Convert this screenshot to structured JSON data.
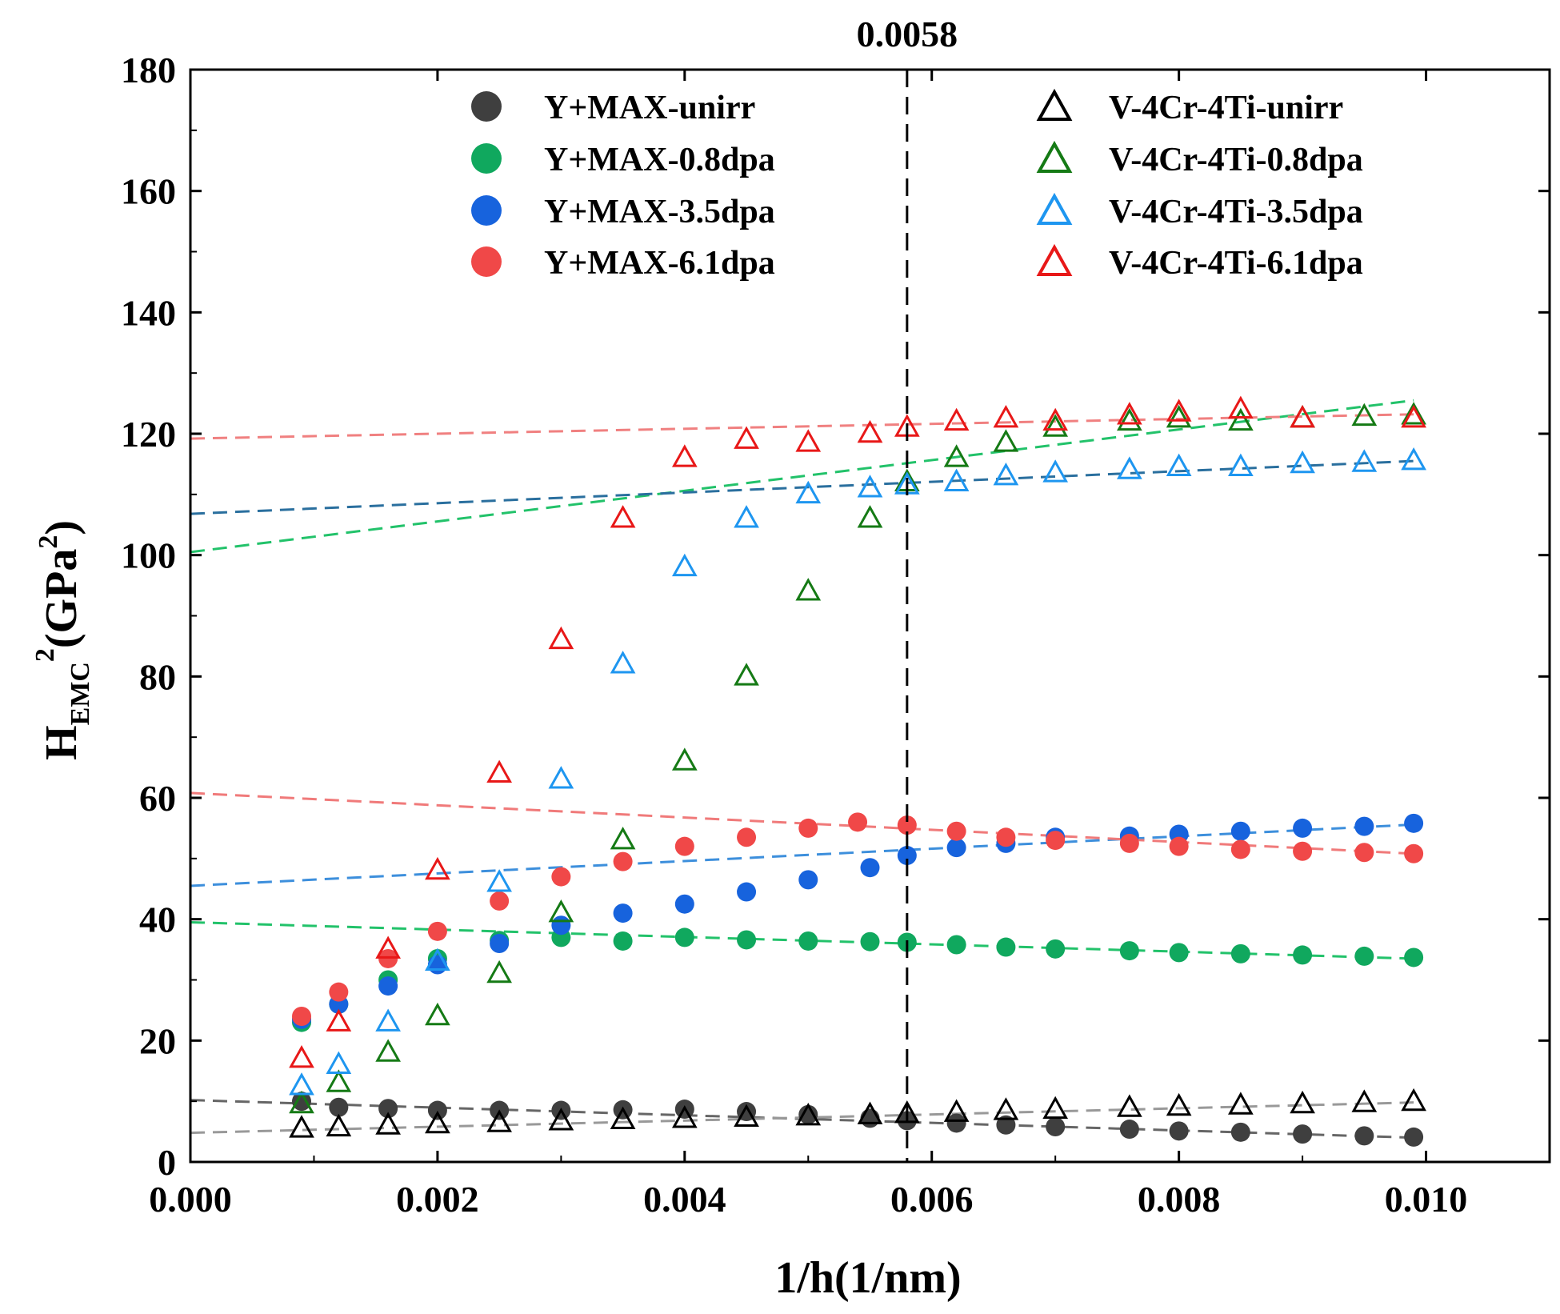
{
  "chart_data": {
    "type": "scatter",
    "title": "",
    "xlabel": "1/h(1/nm)",
    "ylabel": {
      "main": "H",
      "subscript": "EMC",
      "sup1": "2",
      "paren_open": "(GPa",
      "sup2": "2",
      "paren_close": ")"
    },
    "xlim": [
      0.0,
      0.011
    ],
    "ylim": [
      0,
      180
    ],
    "xticks": [
      0.0,
      0.002,
      0.004,
      0.006,
      0.008,
      0.01
    ],
    "xtick_labels": [
      "0.000",
      "0.002",
      "0.004",
      "0.006",
      "0.008",
      "0.010"
    ],
    "yticks": [
      0,
      20,
      40,
      60,
      80,
      100,
      120,
      140,
      160,
      180
    ],
    "ytick_labels": [
      "0",
      "20",
      "40",
      "60",
      "80",
      "100",
      "120",
      "140",
      "160",
      "180"
    ],
    "vline": {
      "x": 0.0058,
      "label": "0.0058"
    },
    "legend_left": [
      "Y+MAX-unirr",
      "Y+MAX-0.8dpa",
      "Y+MAX-3.5dpa",
      "Y+MAX-6.1dpa"
    ],
    "legend_right": [
      "V-4Cr-4Ti-unirr",
      "V-4Cr-4Ti-0.8dpa",
      "V-4Cr-4Ti-3.5dpa",
      "V-4Cr-4Ti-6.1dpa"
    ],
    "series": [
      {
        "name": "Y+MAX-unirr",
        "marker": "circle",
        "color": "#3f3f3f",
        "points": [
          [
            0.0009,
            10
          ],
          [
            0.0012,
            9
          ],
          [
            0.0016,
            8.8
          ],
          [
            0.002,
            8.5
          ],
          [
            0.0025,
            8.5
          ],
          [
            0.003,
            8.5
          ],
          [
            0.0035,
            8.6
          ],
          [
            0.004,
            8.7
          ],
          [
            0.0045,
            8.3
          ],
          [
            0.005,
            7.8
          ],
          [
            0.0055,
            7.2
          ],
          [
            0.0058,
            6.8
          ],
          [
            0.0062,
            6.4
          ],
          [
            0.0066,
            6.1
          ],
          [
            0.007,
            5.8
          ],
          [
            0.0076,
            5.4
          ],
          [
            0.008,
            5.1
          ],
          [
            0.0085,
            4.9
          ],
          [
            0.009,
            4.6
          ],
          [
            0.0095,
            4.3
          ],
          [
            0.0099,
            4.1
          ]
        ],
        "fit": {
          "x1": 0.0,
          "y1": 10.2,
          "x2": 0.0099,
          "y2": 4.0,
          "color": "#666666"
        }
      },
      {
        "name": "Y+MAX-0.8dpa",
        "marker": "circle",
        "color": "#10a85e",
        "points": [
          [
            0.0009,
            23
          ],
          [
            0.0012,
            26
          ],
          [
            0.0016,
            30
          ],
          [
            0.002,
            33.5
          ],
          [
            0.0025,
            36.5
          ],
          [
            0.003,
            37
          ],
          [
            0.0035,
            36.4
          ],
          [
            0.004,
            37
          ],
          [
            0.0045,
            36.6
          ],
          [
            0.005,
            36.4
          ],
          [
            0.0055,
            36.3
          ],
          [
            0.0058,
            36.2
          ],
          [
            0.0062,
            35.8
          ],
          [
            0.0066,
            35.4
          ],
          [
            0.007,
            35.1
          ],
          [
            0.0076,
            34.8
          ],
          [
            0.008,
            34.5
          ],
          [
            0.0085,
            34.3
          ],
          [
            0.009,
            34.1
          ],
          [
            0.0095,
            33.9
          ],
          [
            0.0099,
            33.7
          ]
        ],
        "fit": {
          "x1": 0.0,
          "y1": 39.5,
          "x2": 0.0099,
          "y2": 33.5,
          "color": "#22c26a"
        }
      },
      {
        "name": "Y+MAX-3.5dpa",
        "marker": "circle",
        "color": "#1763dd",
        "points": [
          [
            0.0009,
            23.5
          ],
          [
            0.0012,
            26
          ],
          [
            0.0016,
            29
          ],
          [
            0.002,
            32.5
          ],
          [
            0.0025,
            36
          ],
          [
            0.003,
            39
          ],
          [
            0.0035,
            41
          ],
          [
            0.004,
            42.5
          ],
          [
            0.0045,
            44.5
          ],
          [
            0.005,
            46.5
          ],
          [
            0.0055,
            48.5
          ],
          [
            0.0058,
            50.5
          ],
          [
            0.0062,
            51.8
          ],
          [
            0.0066,
            52.5
          ],
          [
            0.007,
            53.5
          ],
          [
            0.0076,
            53.7
          ],
          [
            0.008,
            54
          ],
          [
            0.0085,
            54.5
          ],
          [
            0.009,
            55
          ],
          [
            0.0095,
            55.3
          ],
          [
            0.0099,
            55.8
          ]
        ],
        "fit": {
          "x1": 0.0,
          "y1": 45.5,
          "x2": 0.0099,
          "y2": 55.6,
          "color": "#3d8fdc"
        }
      },
      {
        "name": "Y+MAX-6.1dpa",
        "marker": "circle",
        "color": "#f04848",
        "points": [
          [
            0.0009,
            24
          ],
          [
            0.0012,
            28
          ],
          [
            0.0016,
            33.5
          ],
          [
            0.002,
            38
          ],
          [
            0.0025,
            43
          ],
          [
            0.003,
            47
          ],
          [
            0.0035,
            49.5
          ],
          [
            0.004,
            52
          ],
          [
            0.0045,
            53.5
          ],
          [
            0.005,
            55
          ],
          [
            0.0054,
            56
          ],
          [
            0.0058,
            55.5
          ],
          [
            0.0062,
            54.5
          ],
          [
            0.0066,
            53.5
          ],
          [
            0.007,
            53
          ],
          [
            0.0076,
            52.5
          ],
          [
            0.008,
            52
          ],
          [
            0.0085,
            51.5
          ],
          [
            0.009,
            51.2
          ],
          [
            0.0095,
            51
          ],
          [
            0.0099,
            50.8
          ]
        ],
        "fit": {
          "x1": 0.0,
          "y1": 60.8,
          "x2": 0.0099,
          "y2": 50.8,
          "color": "#f07a7a"
        }
      },
      {
        "name": "V-4Cr-4Ti-unirr",
        "marker": "triangle",
        "color": "#000000",
        "points": [
          [
            0.0009,
            5.5
          ],
          [
            0.0012,
            5.7
          ],
          [
            0.0016,
            6
          ],
          [
            0.002,
            6.2
          ],
          [
            0.0025,
            6.4
          ],
          [
            0.003,
            6.7
          ],
          [
            0.0035,
            6.9
          ],
          [
            0.004,
            7.1
          ],
          [
            0.0045,
            7.3
          ],
          [
            0.005,
            7.5
          ],
          [
            0.0055,
            7.7
          ],
          [
            0.0058,
            7.9
          ],
          [
            0.0062,
            8.1
          ],
          [
            0.0066,
            8.4
          ],
          [
            0.007,
            8.6
          ],
          [
            0.0076,
            8.9
          ],
          [
            0.008,
            9.1
          ],
          [
            0.0085,
            9.3
          ],
          [
            0.009,
            9.5
          ],
          [
            0.0095,
            9.7
          ],
          [
            0.0099,
            9.9
          ]
        ],
        "fit": {
          "x1": 0.0,
          "y1": 4.8,
          "x2": 0.0099,
          "y2": 9.8,
          "color": "#999999"
        }
      },
      {
        "name": "V-4Cr-4Ti-0.8dpa",
        "marker": "triangle",
        "color": "#157a15",
        "points": [
          [
            0.0009,
            9.5
          ],
          [
            0.0012,
            13
          ],
          [
            0.0016,
            18
          ],
          [
            0.002,
            24
          ],
          [
            0.0025,
            31
          ],
          [
            0.003,
            41
          ],
          [
            0.0035,
            53
          ],
          [
            0.004,
            66
          ],
          [
            0.0045,
            80
          ],
          [
            0.005,
            94
          ],
          [
            0.0055,
            106
          ],
          [
            0.0058,
            112
          ],
          [
            0.0062,
            116
          ],
          [
            0.0066,
            118.5
          ],
          [
            0.007,
            121
          ],
          [
            0.0076,
            122
          ],
          [
            0.008,
            122.5
          ],
          [
            0.0085,
            122
          ],
          [
            0.009,
            122.5
          ],
          [
            0.0095,
            122.8
          ],
          [
            0.0099,
            123
          ]
        ],
        "fit": {
          "x1": 0.0,
          "y1": 100.5,
          "x2": 0.0099,
          "y2": 125.5,
          "color": "#22c26a"
        }
      },
      {
        "name": "V-4Cr-4Ti-3.5dpa",
        "marker": "triangle",
        "color": "#1e96f0",
        "points": [
          [
            0.0009,
            12.5
          ],
          [
            0.0012,
            16
          ],
          [
            0.0016,
            23
          ],
          [
            0.002,
            33
          ],
          [
            0.0025,
            46
          ],
          [
            0.003,
            63
          ],
          [
            0.0035,
            82
          ],
          [
            0.004,
            98
          ],
          [
            0.0045,
            106
          ],
          [
            0.005,
            110
          ],
          [
            0.0055,
            111
          ],
          [
            0.0058,
            111.5
          ],
          [
            0.0062,
            112
          ],
          [
            0.0066,
            113
          ],
          [
            0.007,
            113.5
          ],
          [
            0.0076,
            114
          ],
          [
            0.008,
            114.5
          ],
          [
            0.0085,
            114.5
          ],
          [
            0.009,
            115
          ],
          [
            0.0095,
            115.2
          ],
          [
            0.0099,
            115.5
          ]
        ],
        "fit": {
          "x1": 0.0,
          "y1": 106.8,
          "x2": 0.0099,
          "y2": 115.5,
          "color": "#2a6f9e"
        }
      },
      {
        "name": "V-4Cr-4Ti-6.1dpa",
        "marker": "triangle",
        "color": "#e81818",
        "points": [
          [
            0.0009,
            17
          ],
          [
            0.0012,
            23
          ],
          [
            0.0016,
            35
          ],
          [
            0.002,
            48
          ],
          [
            0.0025,
            64
          ],
          [
            0.003,
            86
          ],
          [
            0.0035,
            106
          ],
          [
            0.004,
            116
          ],
          [
            0.0045,
            119
          ],
          [
            0.005,
            118.5
          ],
          [
            0.0055,
            120
          ],
          [
            0.0058,
            121
          ],
          [
            0.0062,
            122
          ],
          [
            0.0066,
            122.5
          ],
          [
            0.007,
            122
          ],
          [
            0.0076,
            123
          ],
          [
            0.008,
            123.5
          ],
          [
            0.0085,
            124
          ],
          [
            0.009,
            122.5
          ],
          [
            0.0099,
            122.5
          ]
        ],
        "fit": {
          "x1": 0.0,
          "y1": 119.2,
          "x2": 0.0099,
          "y2": 123.2,
          "color": "#f08080"
        }
      }
    ]
  }
}
